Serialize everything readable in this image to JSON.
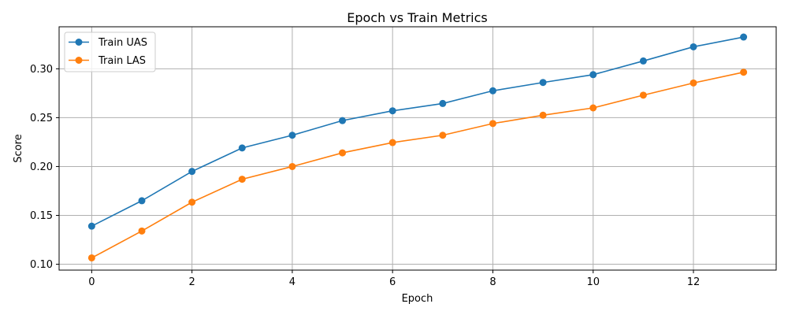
{
  "chart_data": {
    "type": "line",
    "title": "Epoch vs Train Metrics",
    "xlabel": "Epoch",
    "ylabel": "Score",
    "x": [
      0,
      1,
      2,
      3,
      4,
      5,
      6,
      7,
      8,
      9,
      10,
      11,
      12,
      13
    ],
    "xlim": [
      -0.65,
      13.65
    ],
    "ylim": [
      0.094,
      0.343
    ],
    "xticks": [
      0,
      2,
      4,
      6,
      8,
      10,
      12
    ],
    "yticks": [
      0.1,
      0.15,
      0.2,
      0.25,
      0.3
    ],
    "xtick_labels": [
      "0",
      "2",
      "4",
      "6",
      "8",
      "10",
      "12"
    ],
    "ytick_labels": [
      "0.10",
      "0.15",
      "0.20",
      "0.25",
      "0.30"
    ],
    "grid": true,
    "legend_position": "upper-left",
    "series": [
      {
        "name": "Train UAS",
        "color": "#1f77b4",
        "marker": "circle",
        "values": [
          0.139,
          0.165,
          0.195,
          0.219,
          0.232,
          0.247,
          0.257,
          0.2645,
          0.2775,
          0.286,
          0.294,
          0.308,
          0.3225,
          0.3325
        ]
      },
      {
        "name": "Train LAS",
        "color": "#ff7f0e",
        "marker": "circle",
        "values": [
          0.1065,
          0.134,
          0.1635,
          0.187,
          0.2,
          0.214,
          0.2245,
          0.232,
          0.244,
          0.2525,
          0.26,
          0.273,
          0.2855,
          0.2965
        ]
      }
    ]
  }
}
